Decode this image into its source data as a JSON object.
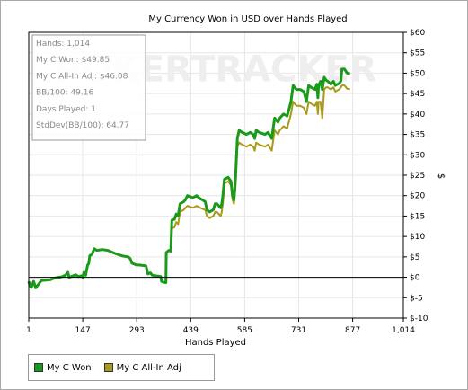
{
  "chart_data": {
    "type": "line",
    "title": "My Currency Won in USD over Hands Played",
    "xlabel": "Hands Played",
    "ylabel": "$",
    "xlim": [
      1,
      1014
    ],
    "ylim": [
      -10,
      60
    ],
    "x_ticks": [
      1,
      147,
      293,
      439,
      585,
      731,
      877,
      1014
    ],
    "x_tick_labels": [
      "1",
      "147",
      "293",
      "439",
      "585",
      "731",
      "877",
      "1,014"
    ],
    "y_ticks": [
      -10,
      -5,
      0,
      5,
      10,
      15,
      20,
      25,
      30,
      35,
      40,
      45,
      50,
      55,
      60
    ],
    "y_tick_labels": [
      "$-10",
      "$-5",
      "$0",
      "$5",
      "$10",
      "$15",
      "$20",
      "$25",
      "$30",
      "$35",
      "$40",
      "$45",
      "$50",
      "$55",
      "$60"
    ],
    "grid": true,
    "watermark": "POKERTRACKER",
    "stats": [
      "Hands: 1,014",
      "My C Won: $49.85",
      "My C All-In Adj: $46.08",
      "BB/100: 49.16",
      "Days Played: 1",
      "StdDev(BB/100): 64.77"
    ],
    "series": [
      {
        "name": "My C Won",
        "color": "#1a9a1a",
        "points": [
          [
            1,
            -1
          ],
          [
            4,
            -2
          ],
          [
            8,
            -2.5
          ],
          [
            14,
            -1
          ],
          [
            20,
            -2.6
          ],
          [
            35,
            -0.8
          ],
          [
            60,
            -0.6
          ],
          [
            70,
            -0.2
          ],
          [
            90,
            0.1
          ],
          [
            100,
            0.5
          ],
          [
            107,
            1.2
          ],
          [
            110,
            0
          ],
          [
            122,
            0.4
          ],
          [
            128,
            0.6
          ],
          [
            135,
            0.2
          ],
          [
            145,
            0.4
          ],
          [
            147,
            0
          ],
          [
            150,
            1.2
          ],
          [
            155,
            0.5
          ],
          [
            160,
            3
          ],
          [
            163,
            3.3
          ],
          [
            166,
            5.3
          ],
          [
            172,
            5.6
          ],
          [
            178,
            7
          ],
          [
            185,
            6.6
          ],
          [
            200,
            6.8
          ],
          [
            215,
            6.6
          ],
          [
            230,
            6
          ],
          [
            245,
            5.5
          ],
          [
            255,
            5.2
          ],
          [
            270,
            5
          ],
          [
            275,
            4.6
          ],
          [
            280,
            3.5
          ],
          [
            292,
            3
          ],
          [
            300,
            3
          ],
          [
            318,
            2.8
          ],
          [
            323,
            0.8
          ],
          [
            330,
            1.1
          ],
          [
            335,
            0.5
          ],
          [
            350,
            0.3
          ],
          [
            358,
            0.2
          ],
          [
            360,
            -1
          ],
          [
            365,
            -1.2
          ],
          [
            372,
            -1.3
          ],
          [
            373,
            6.1
          ],
          [
            380,
            6.6
          ],
          [
            385,
            6.4
          ],
          [
            388,
            14
          ],
          [
            395,
            14.2
          ],
          [
            400,
            15.5
          ],
          [
            405,
            15
          ],
          [
            410,
            18
          ],
          [
            420,
            18.5
          ],
          [
            425,
            19
          ],
          [
            430,
            20
          ],
          [
            445,
            19.5
          ],
          [
            455,
            20
          ],
          [
            465,
            19.2
          ],
          [
            470,
            19
          ],
          [
            478,
            18.5
          ],
          [
            483,
            16.5
          ],
          [
            490,
            16
          ],
          [
            500,
            16.5
          ],
          [
            505,
            18
          ],
          [
            510,
            18
          ],
          [
            515,
            17.5
          ],
          [
            520,
            17
          ],
          [
            523,
            18
          ],
          [
            526,
            20
          ],
          [
            530,
            24
          ],
          [
            540,
            24.5
          ],
          [
            548,
            23.5
          ],
          [
            552,
            20
          ],
          [
            556,
            19
          ],
          [
            560,
            24
          ],
          [
            565,
            34
          ],
          [
            570,
            36
          ],
          [
            578,
            35.5
          ],
          [
            590,
            35
          ],
          [
            600,
            35.5
          ],
          [
            608,
            35
          ],
          [
            612,
            34
          ],
          [
            616,
            36
          ],
          [
            624,
            35.5
          ],
          [
            640,
            35
          ],
          [
            648,
            35.5
          ],
          [
            658,
            34
          ],
          [
            666,
            39
          ],
          [
            675,
            38
          ],
          [
            680,
            39
          ],
          [
            690,
            40
          ],
          [
            700,
            39.5
          ],
          [
            710,
            43
          ],
          [
            716,
            47
          ],
          [
            725,
            46
          ],
          [
            735,
            46
          ],
          [
            745,
            45.5
          ],
          [
            752,
            43
          ],
          [
            758,
            47
          ],
          [
            765,
            46.5
          ],
          [
            775,
            46
          ],
          [
            780,
            47.3
          ],
          [
            783,
            44
          ],
          [
            785,
            47
          ],
          [
            790,
            48
          ],
          [
            795,
            46
          ],
          [
            800,
            49
          ],
          [
            805,
            48.3
          ],
          [
            810,
            48
          ],
          [
            818,
            47.3
          ],
          [
            825,
            48
          ],
          [
            830,
            47
          ],
          [
            840,
            47.5
          ],
          [
            845,
            48
          ],
          [
            848,
            51
          ],
          [
            855,
            51
          ],
          [
            862,
            50
          ],
          [
            870,
            49.85
          ]
        ]
      },
      {
        "name": "My C All-In Adj",
        "color": "#a89a1a",
        "points": [
          [
            1,
            -1
          ],
          [
            4,
            -2
          ],
          [
            8,
            -2.5
          ],
          [
            14,
            -1
          ],
          [
            20,
            -2.6
          ],
          [
            35,
            -0.8
          ],
          [
            60,
            -0.6
          ],
          [
            70,
            -0.2
          ],
          [
            90,
            0.1
          ],
          [
            100,
            0.5
          ],
          [
            107,
            1.2
          ],
          [
            110,
            0
          ],
          [
            122,
            0.4
          ],
          [
            128,
            0.6
          ],
          [
            135,
            0.2
          ],
          [
            145,
            0.4
          ],
          [
            147,
            0
          ],
          [
            150,
            1.2
          ],
          [
            155,
            0.5
          ],
          [
            160,
            3
          ],
          [
            163,
            3.3
          ],
          [
            166,
            5.3
          ],
          [
            172,
            5.6
          ],
          [
            178,
            7
          ],
          [
            185,
            6.6
          ],
          [
            200,
            6.8
          ],
          [
            215,
            6.6
          ],
          [
            230,
            6
          ],
          [
            245,
            5.5
          ],
          [
            255,
            5.2
          ],
          [
            270,
            5
          ],
          [
            275,
            4.6
          ],
          [
            280,
            3.5
          ],
          [
            292,
            3
          ],
          [
            300,
            3
          ],
          [
            318,
            2.8
          ],
          [
            323,
            0.8
          ],
          [
            330,
            1.1
          ],
          [
            335,
            0.5
          ],
          [
            350,
            0.3
          ],
          [
            358,
            0.2
          ],
          [
            360,
            -1
          ],
          [
            365,
            -1.2
          ],
          [
            372,
            -1.3
          ],
          [
            373,
            6.1
          ],
          [
            380,
            6.6
          ],
          [
            385,
            6.4
          ],
          [
            388,
            12
          ],
          [
            395,
            12.2
          ],
          [
            400,
            13.5
          ],
          [
            405,
            13
          ],
          [
            410,
            16
          ],
          [
            420,
            16.5
          ],
          [
            425,
            17
          ],
          [
            430,
            17.5
          ],
          [
            445,
            17
          ],
          [
            455,
            17.5
          ],
          [
            465,
            17
          ],
          [
            470,
            16.8
          ],
          [
            478,
            16.5
          ],
          [
            483,
            15
          ],
          [
            490,
            14.5
          ],
          [
            500,
            15
          ],
          [
            505,
            16
          ],
          [
            510,
            16
          ],
          [
            515,
            15.5
          ],
          [
            520,
            15
          ],
          [
            523,
            16
          ],
          [
            526,
            18
          ],
          [
            530,
            23
          ],
          [
            540,
            23.5
          ],
          [
            548,
            22.5
          ],
          [
            552,
            19
          ],
          [
            556,
            18
          ],
          [
            560,
            22
          ],
          [
            565,
            32
          ],
          [
            570,
            33
          ],
          [
            578,
            32.5
          ],
          [
            590,
            32
          ],
          [
            600,
            32.5
          ],
          [
            608,
            32
          ],
          [
            612,
            31
          ],
          [
            616,
            33
          ],
          [
            624,
            32.5
          ],
          [
            640,
            32
          ],
          [
            648,
            32.5
          ],
          [
            658,
            31
          ],
          [
            666,
            36
          ],
          [
            675,
            35
          ],
          [
            680,
            36
          ],
          [
            690,
            37
          ],
          [
            700,
            36.5
          ],
          [
            710,
            40
          ],
          [
            716,
            43
          ],
          [
            725,
            42
          ],
          [
            735,
            42
          ],
          [
            745,
            41.5
          ],
          [
            752,
            40
          ],
          [
            758,
            43
          ],
          [
            765,
            42.5
          ],
          [
            775,
            42
          ],
          [
            780,
            43
          ],
          [
            783,
            40
          ],
          [
            785,
            43
          ],
          [
            790,
            43
          ],
          [
            795,
            39
          ],
          [
            800,
            46
          ],
          [
            805,
            46.5
          ],
          [
            810,
            46.5
          ],
          [
            818,
            46
          ],
          [
            825,
            46.5
          ],
          [
            830,
            45.5
          ],
          [
            840,
            46
          ],
          [
            845,
            46.5
          ],
          [
            848,
            47
          ],
          [
            855,
            47
          ],
          [
            862,
            46.2
          ],
          [
            870,
            46.08
          ]
        ]
      }
    ]
  }
}
